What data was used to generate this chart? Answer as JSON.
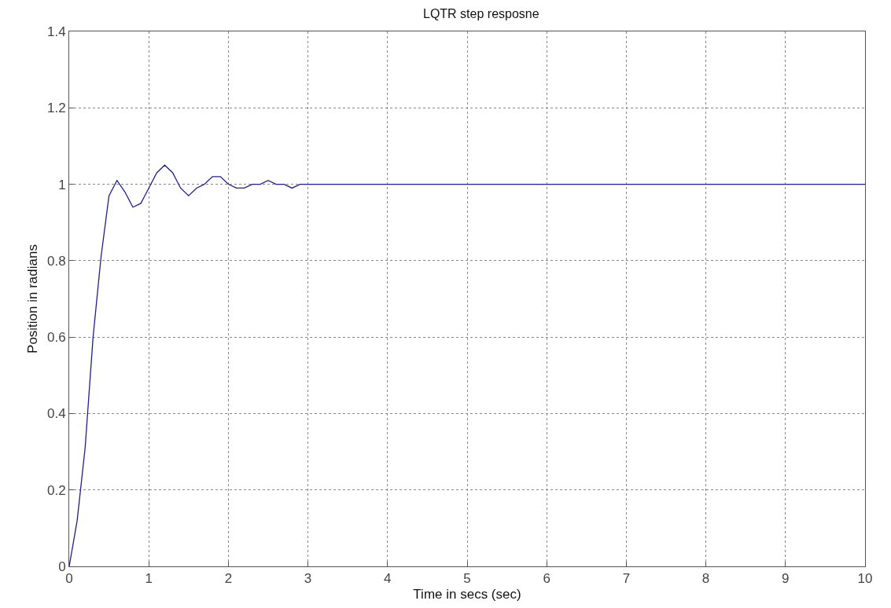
{
  "chart_data": {
    "type": "line",
    "title": "LQTR step resposne",
    "xlabel": "Time in secs (sec)",
    "ylabel": "Position in radians",
    "x": [
      0,
      0.1,
      0.2,
      0.3,
      0.4,
      0.5,
      0.6,
      0.7,
      0.8,
      0.9,
      1.0,
      1.1,
      1.2,
      1.3,
      1.4,
      1.5,
      1.6,
      1.7,
      1.8,
      1.9,
      2.0,
      2.1,
      2.2,
      2.3,
      2.4,
      2.5,
      2.6,
      2.7,
      2.8,
      2.9,
      3.0,
      3.2,
      3.5,
      4,
      5,
      6,
      7,
      8,
      9,
      10
    ],
    "series": [
      {
        "color": "#1f1f8f",
        "values": [
          0,
          0.12,
          0.31,
          0.6,
          0.81,
          0.97,
          1.01,
          0.98,
          0.94,
          0.95,
          0.99,
          1.03,
          1.05,
          1.03,
          0.99,
          0.97,
          0.99,
          1.0,
          1.02,
          1.02,
          1.0,
          0.99,
          0.99,
          1.0,
          1.0,
          1.01,
          1.0,
          1.0,
          0.99,
          1.0,
          1.0,
          1.0,
          1.0,
          1.0,
          1.0,
          1.0,
          1.0,
          1.0,
          1.0,
          1.0
        ]
      }
    ],
    "xlim": [
      0,
      10
    ],
    "xticks": [
      0,
      1,
      2,
      3,
      4,
      5,
      6,
      7,
      8,
      9,
      10
    ],
    "ylim": [
      0,
      1.4
    ],
    "yticks": [
      0,
      0.2,
      0.4,
      0.6,
      0.8,
      1,
      1.2,
      1.4
    ],
    "grid": true,
    "marker": "none",
    "line_style": "solid"
  }
}
